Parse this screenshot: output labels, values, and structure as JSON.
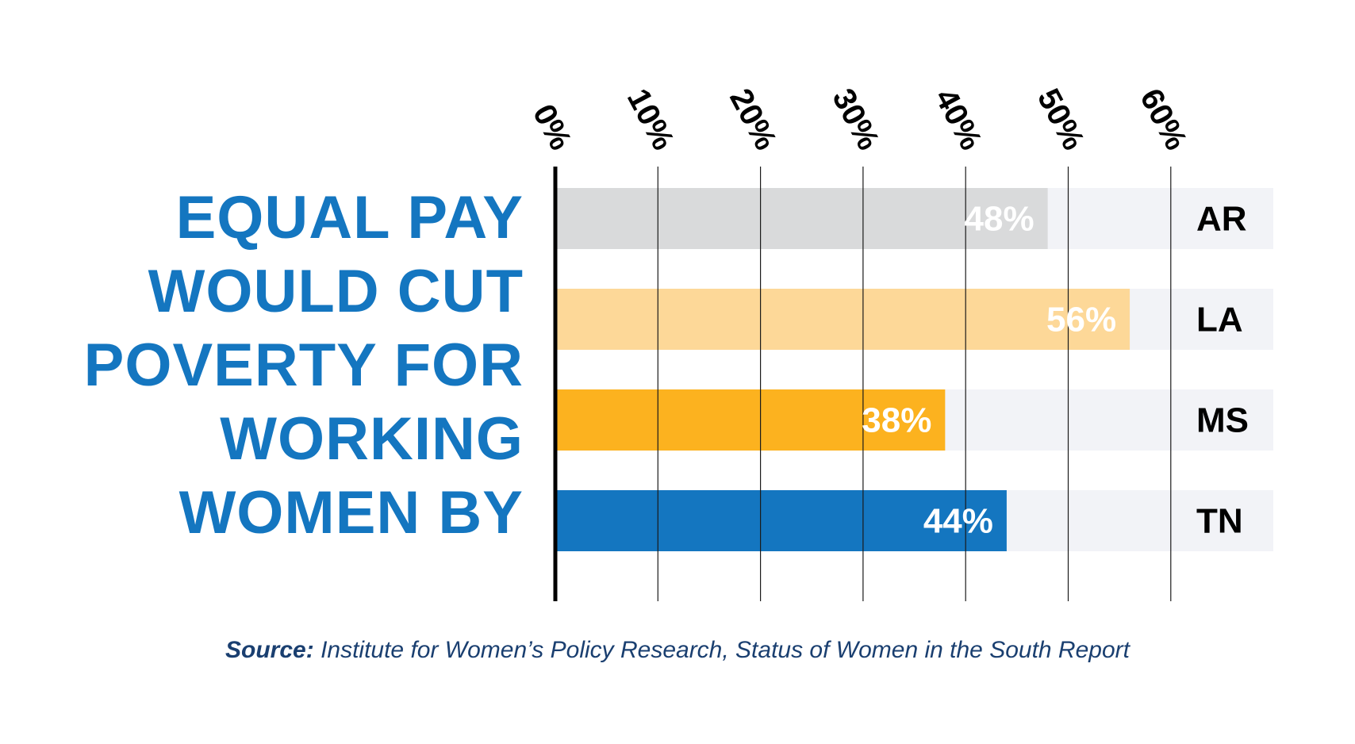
{
  "headline": [
    "EQUAL PAY",
    "WOULD CUT",
    "POVERTY FOR",
    "WORKING",
    "WOMEN BY"
  ],
  "source": {
    "label": "Source:",
    "text": "Institute for Women’s Policy Research, Status of Women in the South Report"
  },
  "chart_data": {
    "type": "bar",
    "orientation": "horizontal",
    "categories": [
      "AR",
      "LA",
      "MS",
      "TN"
    ],
    "values": [
      48,
      56,
      38,
      44
    ],
    "value_labels": [
      "48%",
      "56%",
      "38%",
      "44%"
    ],
    "colors": [
      "#d9dadb",
      "#fdd898",
      "#fcb21f",
      "#1476c0"
    ],
    "track_color": "#f2f3f7",
    "axis": {
      "ticks": [
        0,
        10,
        20,
        30,
        40,
        50,
        60
      ],
      "tick_labels": [
        "0%",
        "10%",
        "20%",
        "30%",
        "40%",
        "50%",
        "60%"
      ],
      "xlim": [
        0,
        60
      ],
      "position": "top",
      "gridlines": true
    },
    "title": "",
    "xlabel": "",
    "ylabel": ""
  }
}
